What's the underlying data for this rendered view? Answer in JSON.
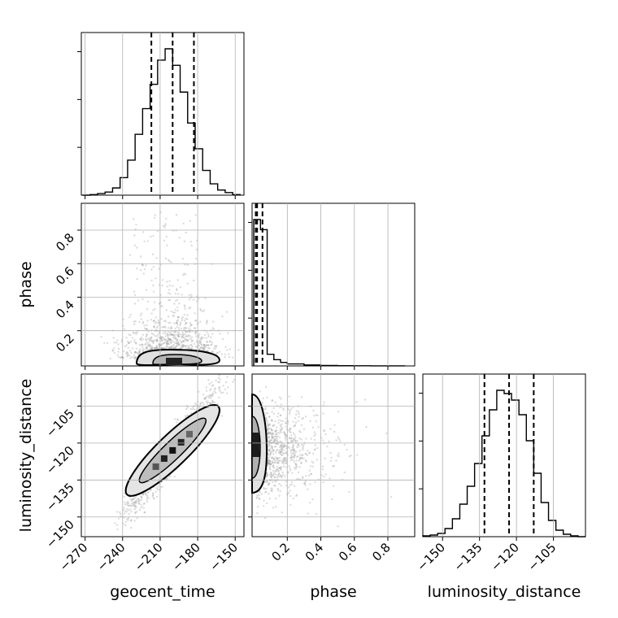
{
  "chart_data": {
    "type": "corner",
    "parameters": [
      "geocent_time",
      "phase",
      "luminosity_distance"
    ],
    "axis_labels": {
      "geocent_time": "geocent_time",
      "phase": "phase",
      "luminosity_distance": "luminosity_distance"
    },
    "ranges": {
      "geocent_time": [
        -273,
        -143
      ],
      "phase": [
        -0.01,
        0.96
      ],
      "luminosity_distance": [
        -158,
        -92
      ]
    },
    "ticks": {
      "geocent_time": [
        -270,
        -240,
        -210,
        -180,
        -150
      ],
      "phase": [
        0.2,
        0.4,
        0.6,
        0.8
      ],
      "luminosity_distance": [
        -150,
        -135,
        -120,
        -105
      ]
    },
    "tick_labels": {
      "geocent_time": [
        "−270",
        "−240",
        "−210",
        "−180",
        "−150"
      ],
      "phase": [
        "0.2",
        "0.4",
        "0.6",
        "0.8"
      ],
      "luminosity_distance": [
        "−150",
        "−135",
        "−120",
        "−105"
      ]
    },
    "histograms": {
      "geocent_time": {
        "bin_edges": [
          -272,
          -266,
          -260,
          -254,
          -248,
          -242,
          -236,
          -230,
          -224,
          -218,
          -212,
          -206,
          -200,
          -194,
          -188,
          -182,
          -176,
          -170,
          -164,
          -158,
          -152,
          -146
        ],
        "counts": [
          0,
          1,
          3,
          6,
          14,
          34,
          68,
          118,
          168,
          215,
          262,
          284,
          252,
          200,
          140,
          90,
          48,
          22,
          10,
          5,
          1
        ]
      },
      "phase": {
        "bin_edges": [
          0.0,
          0.04,
          0.08,
          0.12,
          0.16,
          0.2,
          0.3,
          0.4,
          0.5,
          0.6,
          0.7,
          0.8,
          0.9
        ],
        "counts": [
          1880,
          1750,
          150,
          80,
          45,
          25,
          12,
          6,
          3,
          2,
          1,
          1
        ]
      },
      "luminosity_distance": {
        "bin_edges": [
          -158,
          -155,
          -152,
          -149,
          -146,
          -143,
          -140,
          -137,
          -134,
          -131,
          -128,
          -125,
          -122,
          -119,
          -116,
          -113,
          -110,
          -107,
          -104,
          -101,
          -98,
          -95,
          -92
        ],
        "counts": [
          1,
          2,
          4,
          10,
          22,
          40,
          62,
          90,
          124,
          156,
          180,
          176,
          168,
          150,
          118,
          78,
          42,
          20,
          8,
          3,
          1,
          0
        ]
      }
    },
    "quantiles": {
      "geocent_time": [
        -217,
        -200,
        -183
      ],
      "phase": [
        0.012,
        0.02,
        0.052
      ],
      "luminosity_distance": [
        -133,
        -123,
        -113
      ]
    },
    "scatter": {
      "phase_vs_geocent_time": {
        "center": [
          -200,
          0.05
        ],
        "correlation": 0.0
      },
      "luminosity_distance_vs_geocent_time": {
        "center": [
          -200,
          -123
        ],
        "correlation": 0.95
      },
      "luminosity_distance_vs_phase": {
        "center": [
          0.04,
          -123
        ],
        "correlation": 0.0
      }
    },
    "grid": true,
    "title": ""
  }
}
